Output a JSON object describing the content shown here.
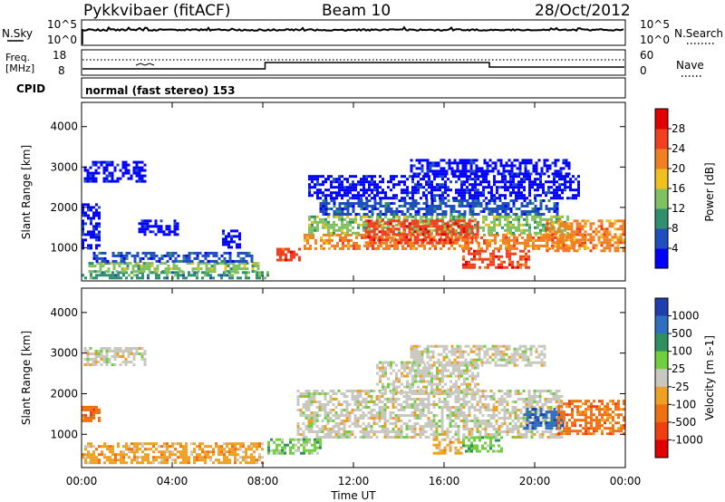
{
  "header": {
    "station": "Pykkvibaer (fitACF)",
    "beam": "Beam 10",
    "date": "28/Oct/2012"
  },
  "strip_panels": {
    "nsky": {
      "label": "N.Sky",
      "ticks": [
        "10^5",
        "10^0"
      ]
    },
    "nsearch": {
      "label": "N.Search",
      "ticks": [
        "10^5",
        "10^0"
      ]
    },
    "freq": {
      "label_line1": "Freq.",
      "label_line2": "[MHz]",
      "ticks": [
        "18",
        "8"
      ]
    },
    "nave": {
      "label": "Nave",
      "ticks": [
        "60",
        "0"
      ]
    },
    "cpid": {
      "label": "CPID",
      "value": "normal (fast stereo) 153"
    }
  },
  "chart_data": [
    {
      "type": "heatmap",
      "panel": "power",
      "ylabel": "Slant Range [km]",
      "xlabel": "",
      "x_ticks": [
        "00:00",
        "04:00",
        "08:00",
        "12:00",
        "16:00",
        "20:00",
        "00:00"
      ],
      "xlim_hours": [
        0,
        24
      ],
      "y_ticks": [
        1000,
        2000,
        3000,
        4000
      ],
      "ylim": [
        180,
        4600
      ],
      "colorbar": {
        "title": "Power [dB]",
        "ticks": [
          "4",
          "8",
          "12",
          "16",
          "20",
          "24",
          "28"
        ],
        "colors": [
          "#0000ff",
          "#1f4fbf",
          "#2f8f6f",
          "#7fc060",
          "#f0c020",
          "#f08020",
          "#f04020",
          "#e00000"
        ]
      },
      "regions": [
        {
          "t0": 0.0,
          "t1": 8.2,
          "r0": 280,
          "r1": 420,
          "level": 2
        },
        {
          "t0": 0.3,
          "t1": 7.8,
          "r0": 420,
          "r1": 650,
          "level": 3
        },
        {
          "t0": 0.5,
          "t1": 7.5,
          "r0": 650,
          "r1": 900,
          "level": 1
        },
        {
          "t0": 0.1,
          "t1": 2.8,
          "r0": 2650,
          "r1": 3150,
          "level": 0
        },
        {
          "t0": 0.0,
          "t1": 0.8,
          "r0": 1000,
          "r1": 2100,
          "level": 0
        },
        {
          "t0": 2.5,
          "t1": 4.2,
          "r0": 1350,
          "r1": 1700,
          "level": 0
        },
        {
          "t0": 6.2,
          "t1": 7.0,
          "r0": 1000,
          "r1": 1450,
          "level": 0
        },
        {
          "t0": 8.6,
          "t1": 9.6,
          "r0": 700,
          "r1": 1000,
          "level": 6
        },
        {
          "t0": 9.8,
          "t1": 22.2,
          "r0": 1000,
          "r1": 1350,
          "level": 5
        },
        {
          "t0": 10.0,
          "t1": 21.5,
          "r0": 1350,
          "r1": 1800,
          "level": 3
        },
        {
          "t0": 10.5,
          "t1": 21.0,
          "r0": 1800,
          "r1": 2200,
          "level": 1
        },
        {
          "t0": 10.0,
          "t1": 22.0,
          "r0": 2200,
          "r1": 2800,
          "level": 0
        },
        {
          "t0": 14.5,
          "t1": 21.5,
          "r0": 2800,
          "r1": 3200,
          "level": 0
        },
        {
          "t0": 16.8,
          "t1": 19.8,
          "r0": 500,
          "r1": 950,
          "level": 6
        },
        {
          "t0": 20.5,
          "t1": 23.9,
          "r0": 900,
          "r1": 1700,
          "level": 5
        },
        {
          "t0": 12.5,
          "t1": 17.5,
          "r0": 1100,
          "r1": 1700,
          "level": 6
        }
      ]
    },
    {
      "type": "heatmap",
      "panel": "velocity",
      "ylabel": "Slant Range [km]",
      "xlabel": "Time UT",
      "x_ticks": [
        "00:00",
        "04:00",
        "08:00",
        "12:00",
        "16:00",
        "20:00",
        "00:00"
      ],
      "xlim_hours": [
        0,
        24
      ],
      "y_ticks": [
        1000,
        2000,
        3000,
        4000
      ],
      "ylim": [
        180,
        4600
      ],
      "colorbar": {
        "title": "Velocity [m s-1]",
        "ticks": [
          "1000",
          "500",
          "100",
          "25",
          "-25",
          "-100",
          "-500",
          "-1000"
        ],
        "colors": [
          "#1f3faf",
          "#2f6fbf",
          "#2f8f5f",
          "#6fcf3f",
          "#c8c8c0",
          "#f0a020",
          "#f07010",
          "#f04010",
          "#e00000"
        ]
      },
      "regions": [
        {
          "t0": 0.0,
          "t1": 8.0,
          "r0": 300,
          "r1": 800,
          "level": 5
        },
        {
          "t0": 0.1,
          "t1": 2.8,
          "r0": 2700,
          "r1": 3150,
          "level": 4
        },
        {
          "t0": 0.0,
          "t1": 0.8,
          "r0": 1300,
          "r1": 1700,
          "level": 6
        },
        {
          "t0": 9.5,
          "t1": 21.2,
          "r0": 900,
          "r1": 2100,
          "level": 4
        },
        {
          "t0": 8.2,
          "t1": 10.5,
          "r0": 500,
          "r1": 900,
          "level": 3
        },
        {
          "t0": 13.0,
          "t1": 17.5,
          "r0": 2000,
          "r1": 2800,
          "level": 4
        },
        {
          "t0": 14.5,
          "t1": 20.5,
          "r0": 2700,
          "r1": 3200,
          "level": 4
        },
        {
          "t0": 16.8,
          "t1": 18.5,
          "r0": 550,
          "r1": 950,
          "level": 3
        },
        {
          "t0": 15.5,
          "t1": 16.8,
          "r0": 550,
          "r1": 900,
          "level": 5
        },
        {
          "t0": 19.5,
          "t1": 21.2,
          "r0": 1150,
          "r1": 1650,
          "level": 1
        },
        {
          "t0": 21.0,
          "t1": 23.9,
          "r0": 1000,
          "r1": 1850,
          "level": 6
        }
      ]
    }
  ]
}
